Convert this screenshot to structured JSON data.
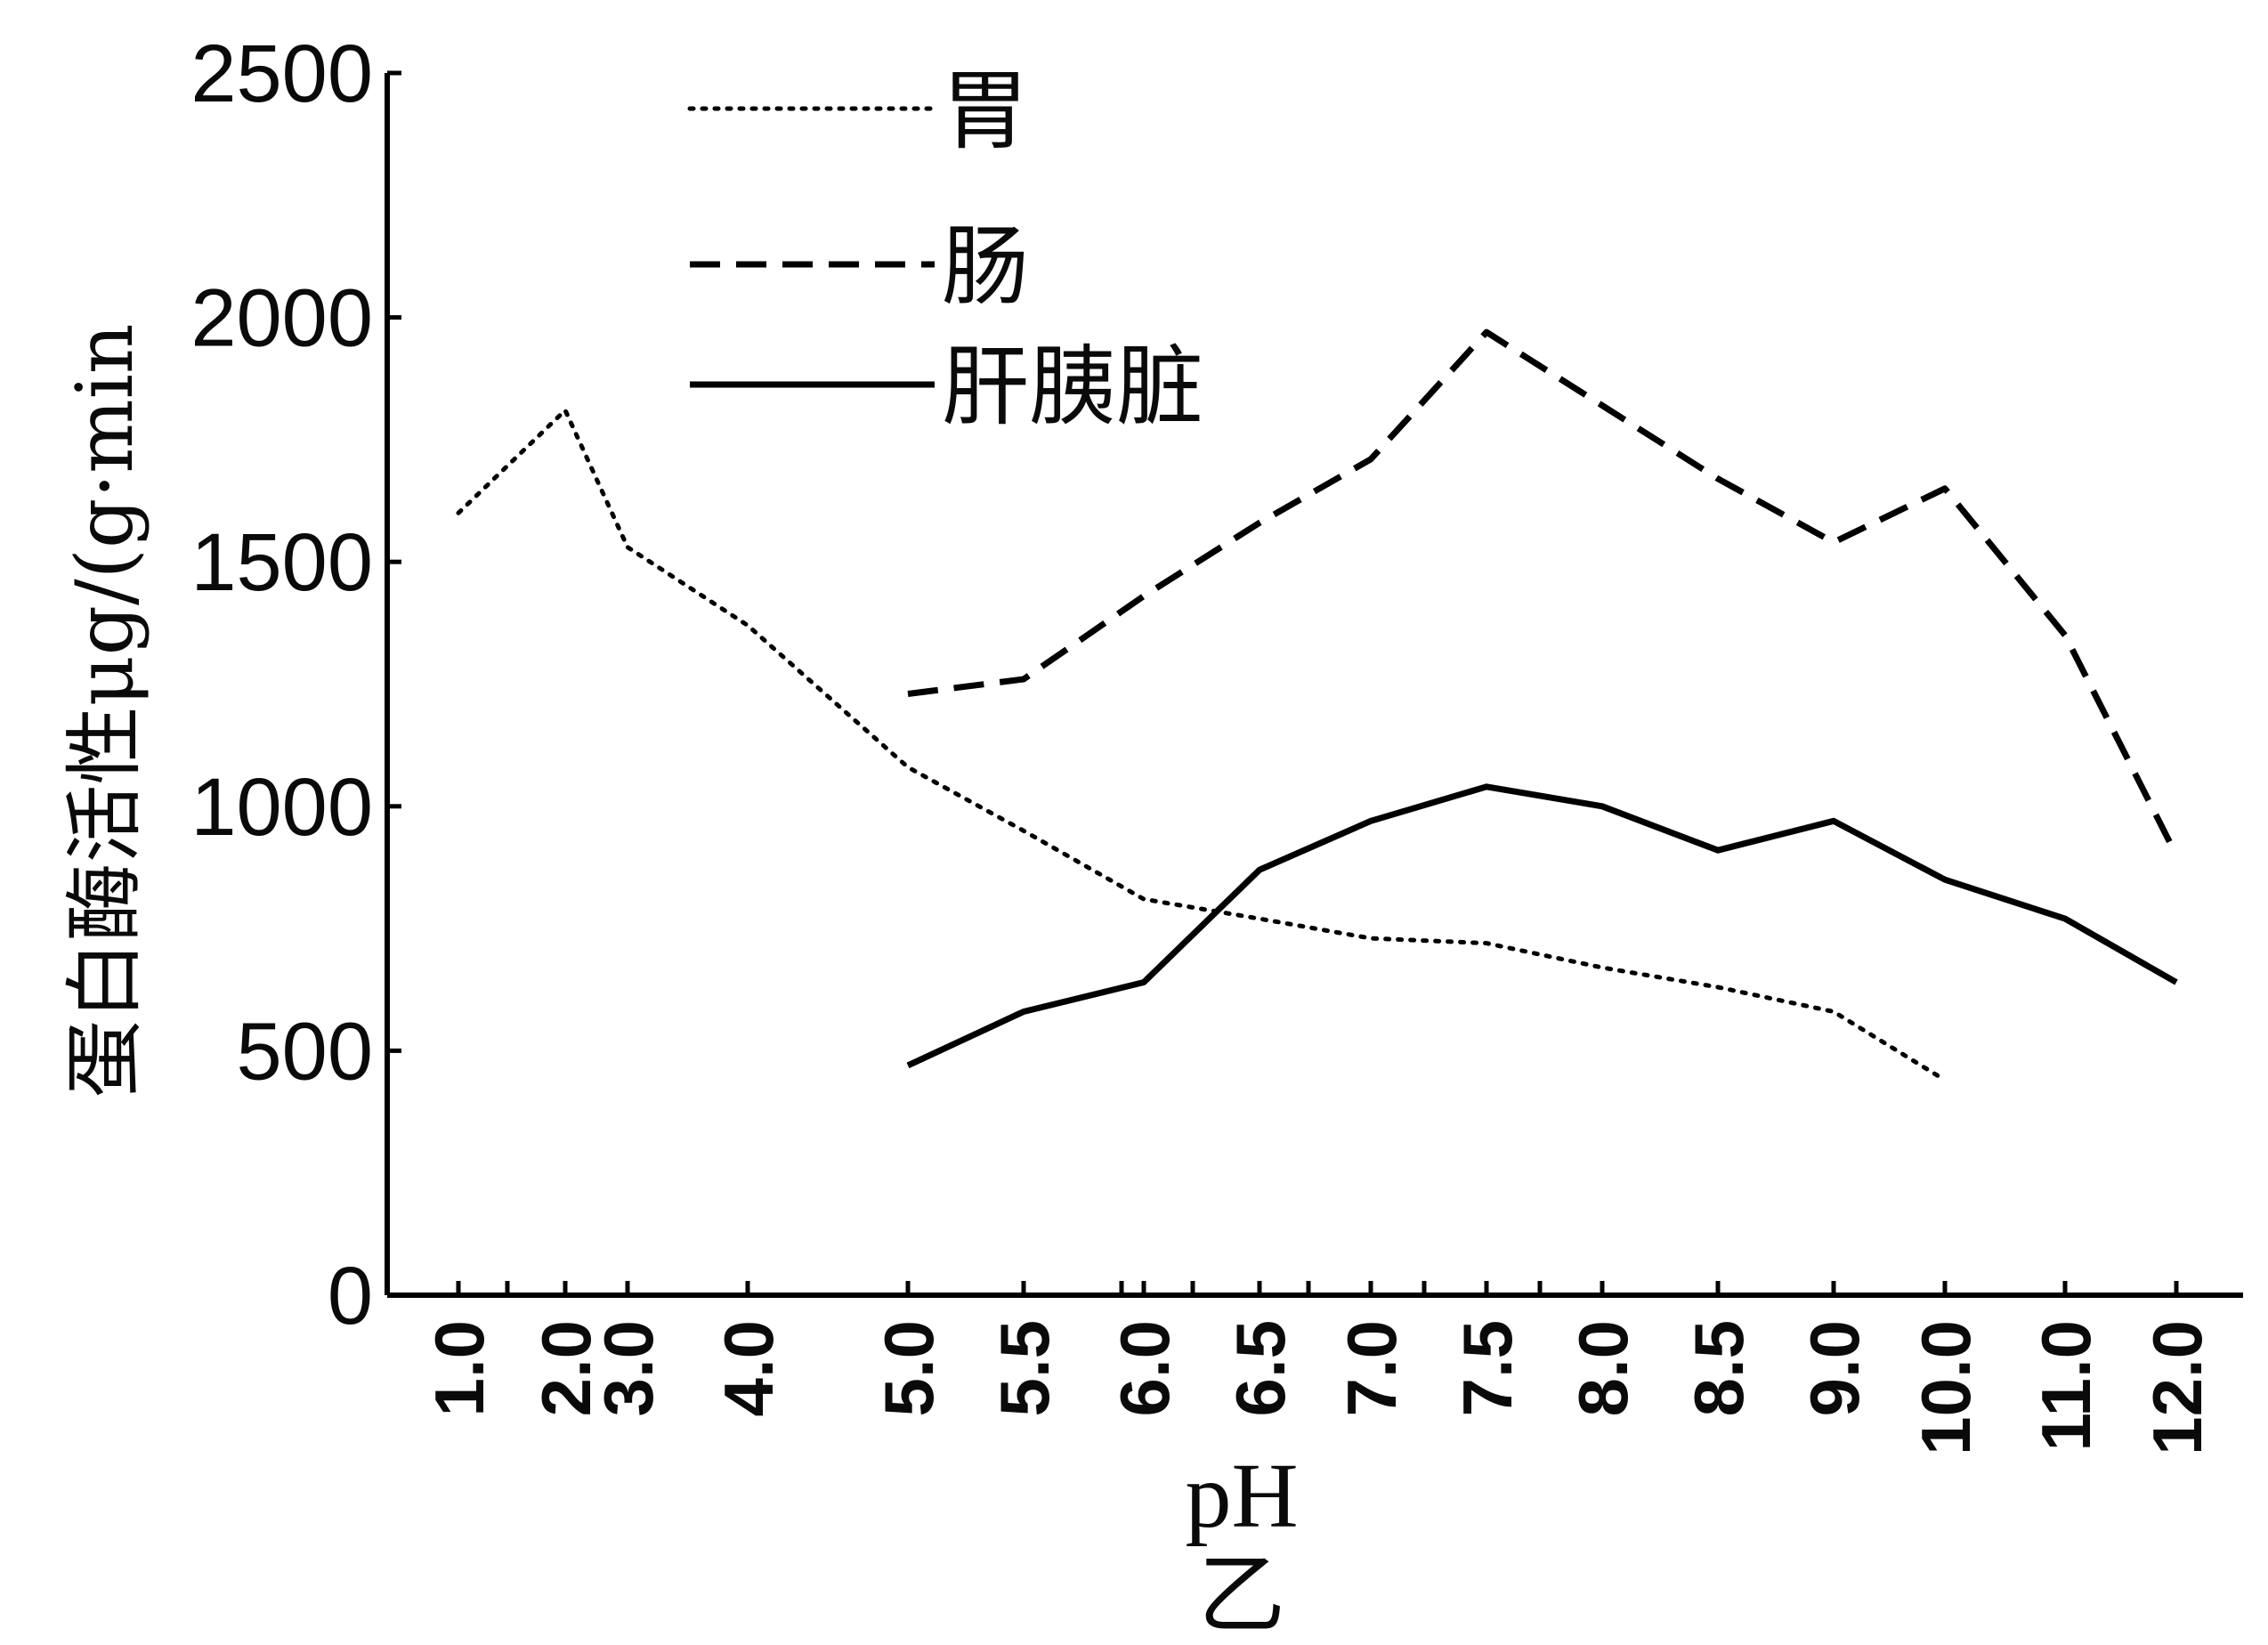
{
  "chart_data": {
    "type": "line",
    "title": "",
    "ylabel": "蛋白酶活性μg/(g·min",
    "xlabel": "pH",
    "caption": "乙",
    "ylim": [
      0,
      2500
    ],
    "y_ticks": [
      "0",
      "500",
      "1000",
      "1500",
      "2000",
      "2500"
    ],
    "x": [
      "1.0",
      "2.0",
      "3.0",
      "4.0",
      "5.0",
      "5.5",
      "6.0",
      "6.5",
      "7.0",
      "7.5",
      "8.0",
      "8.5",
      "9.0",
      "10.0",
      "11.0",
      "12.0"
    ],
    "legend_position": "top-center",
    "series": [
      {
        "name": "胃",
        "style": "dotted",
        "values": [
          1600,
          1810,
          1530,
          1370,
          1080,
          950,
          810,
          770,
          730,
          720,
          670,
          630,
          580,
          440,
          null,
          null
        ]
      },
      {
        "name": "肠",
        "style": "dashed",
        "values": [
          null,
          null,
          null,
          null,
          1230,
          1260,
          1430,
          1580,
          1710,
          1970,
          1820,
          1670,
          1540,
          1650,
          1350,
          900
        ]
      },
      {
        "name": "肝胰脏",
        "style": "solid",
        "values": [
          null,
          null,
          null,
          null,
          470,
          580,
          640,
          870,
          970,
          1040,
          1000,
          910,
          970,
          850,
          770,
          640
        ]
      }
    ]
  }
}
